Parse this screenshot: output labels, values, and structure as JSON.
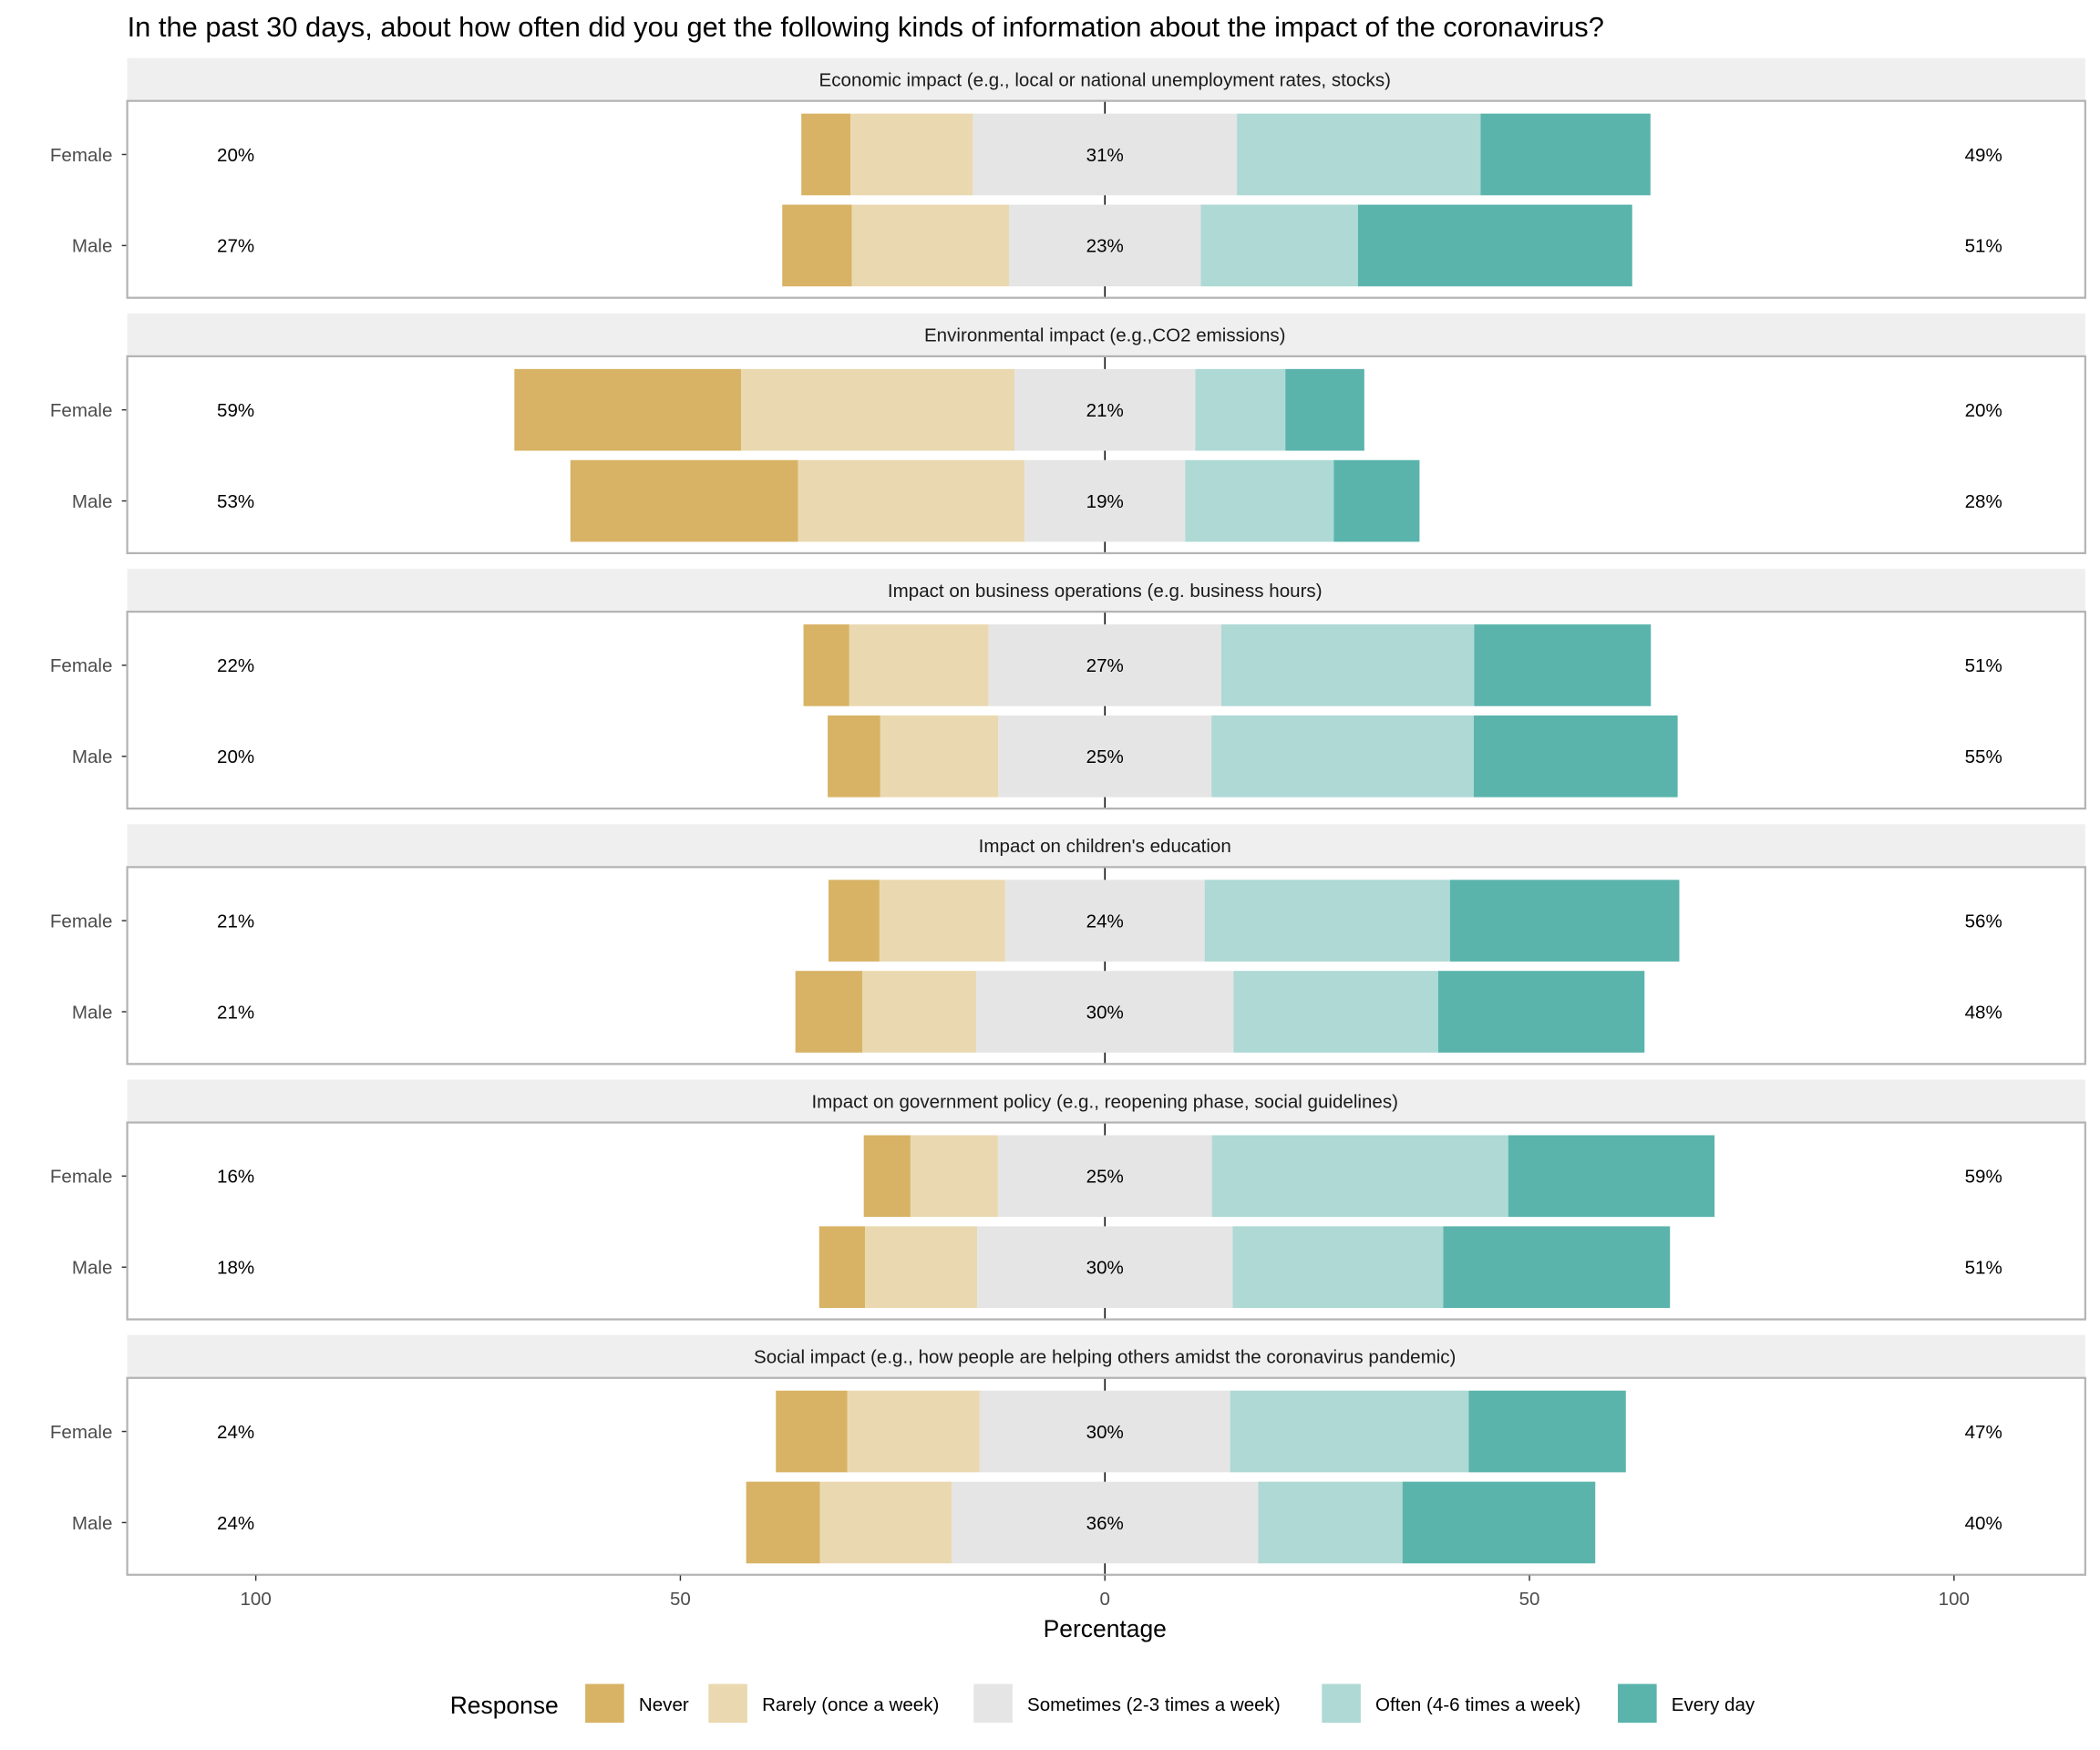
{
  "chart_data": {
    "type": "bar",
    "subtype": "diverging-stacked-likert",
    "title": "In the past 30 days, about how often did you get the following kinds of information about the impact of the coronavirus?",
    "xlabel": "Percentage",
    "ylabel": "",
    "xlim": [
      -115,
      115
    ],
    "x_ticks": [
      -100,
      -50,
      0,
      50,
      100
    ],
    "x_tick_labels": [
      "100",
      "50",
      "0",
      "50",
      "100"
    ],
    "legend": {
      "title": "Response",
      "placement": "bottom",
      "entries": [
        "Never",
        "Rarely (once a week)",
        "Sometimes (2-3 times a week)",
        "Often (4-6 times a week)",
        "Every day"
      ]
    },
    "colors": [
      "#d8b365",
      "#ead9b0",
      "#e5e5e5",
      "#aed9d5",
      "#5ab4ac"
    ],
    "categories": [
      "Female",
      "Male"
    ],
    "panels": [
      {
        "title": "Economic impact (e.g., local or national unemployment rates, stocks)",
        "rows": [
          {
            "group": "Female",
            "values": [
              5.8,
              14.4,
              31.1,
              28.7,
              20.0
            ],
            "low": "20%",
            "neutral": "31%",
            "high": "49%"
          },
          {
            "group": "Male",
            "values": [
              8.2,
              18.5,
              22.6,
              18.5,
              32.3
            ],
            "low": "27%",
            "neutral": "23%",
            "high": "51%"
          }
        ]
      },
      {
        "title": "Environmental impact (e.g.,CO2 emissions)",
        "rows": [
          {
            "group": "Female",
            "values": [
              26.7,
              32.2,
              21.3,
              10.6,
              9.3
            ],
            "low": "59%",
            "neutral": "21%",
            "high": "20%"
          },
          {
            "group": "Male",
            "values": [
              26.8,
              26.7,
              18.9,
              17.5,
              10.1
            ],
            "low": "53%",
            "neutral": "19%",
            "high": "28%"
          }
        ]
      },
      {
        "title": "Impact on business operations (e.g. business hours)",
        "rows": [
          {
            "group": "Female",
            "values": [
              5.4,
              16.4,
              27.4,
              29.8,
              20.8
            ],
            "low": "22%",
            "neutral": "27%",
            "high": "51%"
          },
          {
            "group": "Male",
            "values": [
              6.2,
              13.9,
              25.1,
              30.9,
              24.0
            ],
            "low": "20%",
            "neutral": "25%",
            "high": "55%"
          }
        ]
      },
      {
        "title": "Impact on children's education",
        "rows": [
          {
            "group": "Female",
            "values": [
              6.0,
              14.8,
              23.5,
              28.9,
              27.0
            ],
            "low": "21%",
            "neutral": "24%",
            "high": "56%"
          },
          {
            "group": "Male",
            "values": [
              7.9,
              13.4,
              30.3,
              24.1,
              24.3
            ],
            "low": "21%",
            "neutral": "30%",
            "high": "48%"
          }
        ]
      },
      {
        "title": "Impact on government policy (e.g., reopening phase, social guidelines)",
        "rows": [
          {
            "group": "Female",
            "values": [
              5.5,
              10.3,
              25.2,
              34.9,
              24.3
            ],
            "low": "16%",
            "neutral": "25%",
            "high": "59%"
          },
          {
            "group": "Male",
            "values": [
              5.4,
              13.2,
              30.1,
              24.8,
              26.7
            ],
            "low": "18%",
            "neutral": "30%",
            "high": "51%"
          }
        ]
      },
      {
        "title": "Social impact (e.g., how people are helping others amidst the coronavirus pandemic)",
        "rows": [
          {
            "group": "Female",
            "values": [
              8.4,
              15.6,
              29.5,
              28.1,
              18.5
            ],
            "low": "24%",
            "neutral": "30%",
            "high": "47%"
          },
          {
            "group": "Male",
            "values": [
              8.7,
              15.5,
              36.1,
              17.0,
              22.7
            ],
            "low": "24%",
            "neutral": "36%",
            "high": "40%"
          }
        ]
      }
    ]
  }
}
